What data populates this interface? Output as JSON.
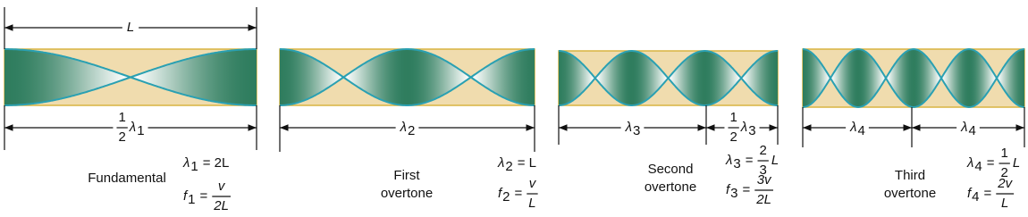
{
  "panels": [
    {
      "length": "L",
      "spans": [
        {
          "num": "1",
          "den": "2",
          "sym": "λ",
          "sub": "1"
        }
      ],
      "name": [
        "Fundamental"
      ],
      "lambda": {
        "sym": "λ",
        "sub": "1",
        "rhs": "= 2L"
      },
      "freq": {
        "sym": "f",
        "sub": "1",
        "eq": "=",
        "num": "v",
        "den": "2L"
      }
    },
    {
      "spans": [
        {
          "sym": "λ",
          "sub": "2"
        }
      ],
      "name": [
        "First",
        "overtone"
      ],
      "lambda": {
        "sym": "λ",
        "sub": "2",
        "rhs": "= L"
      },
      "freq": {
        "sym": "f",
        "sub": "2",
        "eq": "=",
        "num": "v",
        "den": "L"
      }
    },
    {
      "spans": [
        {
          "sym": "λ",
          "sub": "3"
        },
        {
          "num": "1",
          "den": "2",
          "sym": "λ",
          "sub": "3"
        }
      ],
      "name": [
        "Second",
        "overtone"
      ],
      "lambda": {
        "sym": "λ",
        "sub": "3",
        "eq": "=",
        "num": "2",
        "den": "3",
        "tail": "L"
      },
      "freq": {
        "sym": "f",
        "sub": "3",
        "eq": "=",
        "num": "3v",
        "den": "2L"
      }
    },
    {
      "spans": [
        {
          "sym": "λ",
          "sub": "4"
        },
        {
          "sym": "λ",
          "sub": "4"
        }
      ],
      "name": [
        "Third",
        "overtone"
      ],
      "lambda": {
        "sym": "λ",
        "sub": "4",
        "eq": "=",
        "num": "1",
        "den": "2",
        "tail": "L"
      },
      "freq": {
        "sym": "f",
        "sub": "4",
        "eq": "=",
        "num": "2v",
        "den": "L"
      }
    }
  ]
}
